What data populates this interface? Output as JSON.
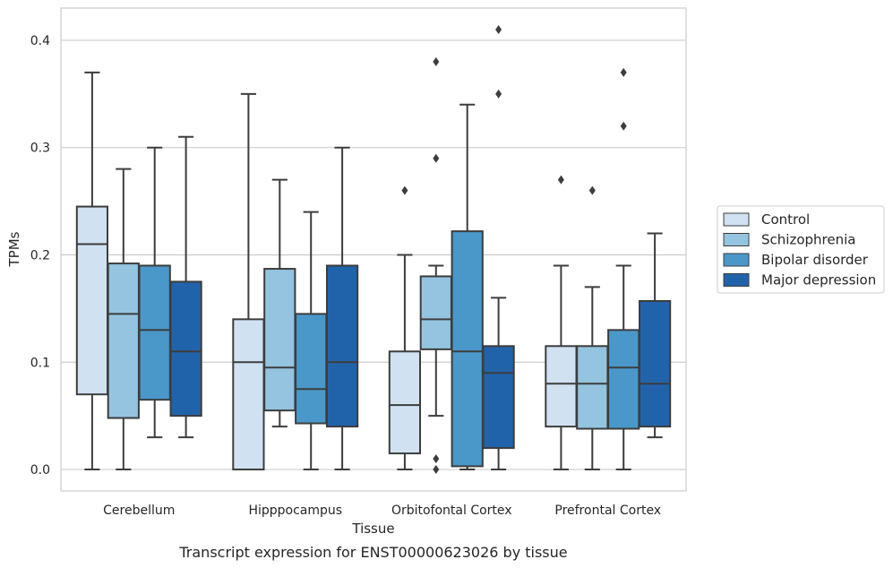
{
  "caption": "Transcript expression for ENST00000623026 by tissue",
  "chart_data": {
    "type": "box",
    "xlabel": "Tissue",
    "ylabel": "TPMs",
    "ylim": [
      -0.02,
      0.43
    ],
    "yticks": [
      "0.0",
      "0.1",
      "0.2",
      "0.3",
      "0.4"
    ],
    "ytick_values": [
      0.0,
      0.1,
      0.2,
      0.3,
      0.4
    ],
    "grid": "horizontal",
    "legend_position": "right",
    "categories": [
      "Cerebellum",
      "Hipppocampus",
      "Orbitofontal Cortex",
      "Prefrontal Cortex"
    ],
    "series": [
      {
        "name": "Control",
        "color": "#d0e1f2",
        "boxes": [
          {
            "whislo": 0.0,
            "q1": 0.07,
            "med": 0.21,
            "q3": 0.245,
            "whishi": 0.37,
            "fliers": []
          },
          {
            "whislo": 0.0,
            "q1": 0.0,
            "med": 0.1,
            "q3": 0.14,
            "whishi": 0.35,
            "fliers": []
          },
          {
            "whislo": 0.0,
            "q1": 0.015,
            "med": 0.06,
            "q3": 0.11,
            "whishi": 0.2,
            "fliers": [
              0.26
            ]
          },
          {
            "whislo": 0.0,
            "q1": 0.04,
            "med": 0.08,
            "q3": 0.115,
            "whishi": 0.19,
            "fliers": [
              0.27
            ]
          }
        ]
      },
      {
        "name": "Schizophrenia",
        "color": "#94c4df",
        "boxes": [
          {
            "whislo": 0.0,
            "q1": 0.048,
            "med": 0.145,
            "q3": 0.192,
            "whishi": 0.28,
            "fliers": []
          },
          {
            "whislo": 0.04,
            "q1": 0.055,
            "med": 0.095,
            "q3": 0.187,
            "whishi": 0.27,
            "fliers": []
          },
          {
            "whislo": 0.05,
            "q1": 0.112,
            "med": 0.14,
            "q3": 0.18,
            "whishi": 0.19,
            "fliers": [
              0.0,
              0.01,
              0.29,
              0.38
            ]
          },
          {
            "whislo": 0.0,
            "q1": 0.038,
            "med": 0.08,
            "q3": 0.115,
            "whishi": 0.17,
            "fliers": [
              0.26
            ]
          }
        ]
      },
      {
        "name": "Bipolar disorder",
        "color": "#4a98c9",
        "boxes": [
          {
            "whislo": 0.03,
            "q1": 0.065,
            "med": 0.13,
            "q3": 0.19,
            "whishi": 0.3,
            "fliers": []
          },
          {
            "whislo": 0.0,
            "q1": 0.043,
            "med": 0.075,
            "q3": 0.145,
            "whishi": 0.24,
            "fliers": []
          },
          {
            "whislo": 0.0,
            "q1": 0.003,
            "med": 0.11,
            "q3": 0.222,
            "whishi": 0.34,
            "fliers": []
          },
          {
            "whislo": 0.0,
            "q1": 0.038,
            "med": 0.095,
            "q3": 0.13,
            "whishi": 0.19,
            "fliers": [
              0.32,
              0.37
            ]
          }
        ]
      },
      {
        "name": "Major depression",
        "color": "#2163aa",
        "boxes": [
          {
            "whislo": 0.03,
            "q1": 0.05,
            "med": 0.11,
            "q3": 0.175,
            "whishi": 0.31,
            "fliers": []
          },
          {
            "whislo": 0.0,
            "q1": 0.04,
            "med": 0.1,
            "q3": 0.19,
            "whishi": 0.3,
            "fliers": []
          },
          {
            "whislo": 0.0,
            "q1": 0.02,
            "med": 0.09,
            "q3": 0.115,
            "whishi": 0.16,
            "fliers": [
              0.35,
              0.41
            ]
          },
          {
            "whislo": 0.03,
            "q1": 0.04,
            "med": 0.08,
            "q3": 0.157,
            "whishi": 0.22,
            "fliers": []
          }
        ]
      }
    ]
  }
}
